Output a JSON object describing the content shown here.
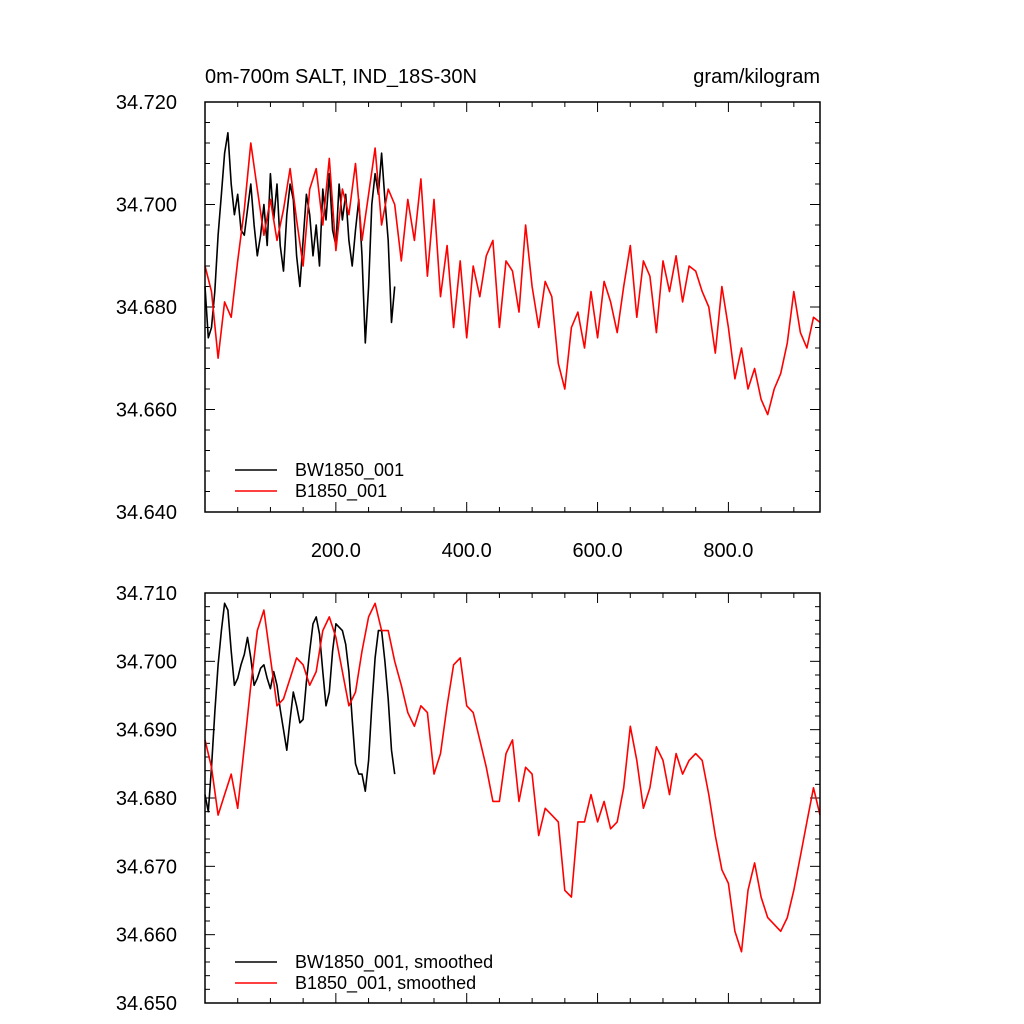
{
  "chart_data": [
    {
      "type": "line",
      "title_left": "0m-700m SALT, IND_18S-30N",
      "title_right": "gram/kilogram",
      "xlabel": "",
      "ylabel": "",
      "xlim": [
        0,
        940
      ],
      "ylim": [
        34.64,
        34.72
      ],
      "yticks": [
        "34.640",
        "34.660",
        "34.680",
        "34.700",
        "34.720"
      ],
      "xticks": [
        "200.0",
        "400.0",
        "600.0",
        "800.0"
      ],
      "legend_position": "bottom-left",
      "series": [
        {
          "name": "BW1850_001",
          "color": "#000000",
          "x": [
            0,
            5,
            10,
            15,
            20,
            25,
            30,
            35,
            40,
            45,
            50,
            55,
            60,
            65,
            70,
            75,
            80,
            85,
            90,
            95,
            100,
            105,
            110,
            115,
            120,
            125,
            130,
            135,
            140,
            145,
            150,
            155,
            160,
            165,
            170,
            175,
            180,
            185,
            190,
            195,
            200,
            205,
            210,
            215,
            220,
            225,
            230,
            235,
            240,
            245,
            250,
            255,
            260,
            265,
            270,
            275,
            280,
            285,
            290
          ],
          "values": [
            34.684,
            34.674,
            34.676,
            34.683,
            34.694,
            34.702,
            34.71,
            34.714,
            34.704,
            34.698,
            34.702,
            34.695,
            34.694,
            34.699,
            34.704,
            34.696,
            34.69,
            34.694,
            34.7,
            34.692,
            34.706,
            34.697,
            34.704,
            34.692,
            34.687,
            34.698,
            34.704,
            34.701,
            34.69,
            34.684,
            34.693,
            34.702,
            34.698,
            34.69,
            34.696,
            34.688,
            34.703,
            34.697,
            34.706,
            34.695,
            34.692,
            34.704,
            34.697,
            34.702,
            34.693,
            34.688,
            34.695,
            34.701,
            34.69,
            34.673,
            34.684,
            34.7,
            34.706,
            34.702,
            34.71,
            34.701,
            34.693,
            34.677,
            34.684
          ]
        },
        {
          "name": "B1850_001",
          "color": "#ff0000",
          "x": [
            0,
            10,
            20,
            30,
            40,
            50,
            60,
            70,
            80,
            90,
            100,
            110,
            120,
            130,
            140,
            150,
            160,
            170,
            180,
            190,
            200,
            210,
            220,
            230,
            240,
            250,
            260,
            270,
            280,
            290,
            300,
            310,
            320,
            330,
            340,
            350,
            360,
            370,
            380,
            390,
            400,
            410,
            420,
            430,
            440,
            450,
            460,
            470,
            480,
            490,
            500,
            510,
            520,
            530,
            540,
            550,
            560,
            570,
            580,
            590,
            600,
            610,
            620,
            630,
            640,
            650,
            660,
            670,
            680,
            690,
            700,
            710,
            720,
            730,
            740,
            750,
            760,
            770,
            780,
            790,
            800,
            810,
            820,
            830,
            840,
            850,
            860,
            870,
            880,
            890,
            900,
            910,
            920,
            930,
            940
          ],
          "values": [
            34.688,
            34.683,
            34.67,
            34.681,
            34.678,
            34.689,
            34.699,
            34.712,
            34.703,
            34.694,
            34.701,
            34.693,
            34.699,
            34.707,
            34.697,
            34.688,
            34.703,
            34.707,
            34.696,
            34.709,
            34.691,
            34.703,
            34.698,
            34.708,
            34.693,
            34.702,
            34.711,
            34.696,
            34.703,
            34.7,
            34.689,
            34.701,
            34.693,
            34.705,
            34.686,
            34.701,
            34.682,
            34.692,
            34.676,
            34.689,
            34.674,
            34.688,
            34.682,
            34.69,
            34.693,
            34.676,
            34.689,
            34.687,
            34.679,
            34.696,
            34.684,
            34.676,
            34.685,
            34.682,
            34.669,
            34.664,
            34.676,
            34.679,
            34.672,
            34.683,
            34.674,
            34.685,
            34.681,
            34.675,
            34.684,
            34.692,
            34.678,
            34.689,
            34.686,
            34.675,
            34.689,
            34.683,
            34.69,
            34.681,
            34.688,
            34.687,
            34.683,
            34.68,
            34.671,
            34.684,
            34.676,
            34.666,
            34.672,
            34.664,
            34.668,
            34.662,
            34.659,
            34.664,
            34.667,
            34.673,
            34.683,
            34.675,
            34.672,
            34.678,
            34.677
          ]
        }
      ]
    },
    {
      "type": "line",
      "title_left": "",
      "title_right": "",
      "xlabel": "",
      "ylabel": "",
      "xlim": [
        0,
        940
      ],
      "ylim": [
        34.65,
        34.71
      ],
      "yticks": [
        "34.650",
        "34.660",
        "34.670",
        "34.680",
        "34.690",
        "34.700",
        "34.710"
      ],
      "xticks": [],
      "legend_position": "bottom-left",
      "series": [
        {
          "name": "BW1850_001, smoothed",
          "color": "#000000",
          "x": [
            0,
            5,
            10,
            15,
            20,
            25,
            30,
            35,
            40,
            45,
            50,
            55,
            60,
            65,
            70,
            75,
            80,
            85,
            90,
            95,
            100,
            105,
            110,
            115,
            120,
            125,
            130,
            135,
            140,
            145,
            150,
            155,
            160,
            165,
            170,
            175,
            180,
            185,
            190,
            195,
            200,
            205,
            210,
            215,
            220,
            225,
            230,
            235,
            240,
            245,
            250,
            255,
            260,
            265,
            270,
            275,
            280,
            285,
            290
          ],
          "values": [
            34.6805,
            34.678,
            34.6845,
            34.6925,
            34.6995,
            34.7045,
            34.7085,
            34.7075,
            34.7015,
            34.6965,
            34.6975,
            34.6995,
            34.701,
            34.7035,
            34.7005,
            34.6965,
            34.6975,
            34.699,
            34.6995,
            34.6975,
            34.696,
            34.6985,
            34.6965,
            34.693,
            34.69,
            34.687,
            34.6915,
            34.6955,
            34.6935,
            34.691,
            34.6915,
            34.697,
            34.7015,
            34.7055,
            34.7065,
            34.704,
            34.6985,
            34.6935,
            34.6955,
            34.7015,
            34.7055,
            34.705,
            34.7045,
            34.7025,
            34.6985,
            34.6915,
            34.685,
            34.6835,
            34.6835,
            34.681,
            34.6855,
            34.6935,
            34.7005,
            34.7045,
            34.7045,
            34.7,
            34.6945,
            34.687,
            34.6835
          ]
        },
        {
          "name": "B1850_001, smoothed",
          "color": "#ff0000",
          "x": [
            0,
            10,
            20,
            30,
            40,
            50,
            60,
            70,
            80,
            90,
            100,
            110,
            120,
            130,
            140,
            150,
            160,
            170,
            180,
            190,
            200,
            210,
            220,
            230,
            240,
            250,
            260,
            270,
            280,
            290,
            300,
            310,
            320,
            330,
            340,
            350,
            360,
            370,
            380,
            390,
            400,
            410,
            420,
            430,
            440,
            450,
            460,
            470,
            480,
            490,
            500,
            510,
            520,
            530,
            540,
            550,
            560,
            570,
            580,
            590,
            600,
            610,
            620,
            630,
            640,
            650,
            660,
            670,
            680,
            690,
            700,
            710,
            720,
            730,
            740,
            750,
            760,
            770,
            780,
            790,
            800,
            810,
            820,
            830,
            840,
            850,
            860,
            870,
            880,
            890,
            900,
            910,
            920,
            930,
            940
          ],
          "values": [
            34.6885,
            34.6845,
            34.6775,
            34.6805,
            34.6835,
            34.6785,
            34.6875,
            34.6965,
            34.7045,
            34.7075,
            34.7005,
            34.6935,
            34.6945,
            34.6975,
            34.7005,
            34.6995,
            34.6965,
            34.6985,
            34.7045,
            34.7065,
            34.7035,
            34.6985,
            34.6935,
            34.6955,
            34.7015,
            34.7065,
            34.7085,
            34.7045,
            34.7045,
            34.7,
            34.6965,
            34.6925,
            34.6905,
            34.6935,
            34.6925,
            34.6835,
            34.6865,
            34.6935,
            34.6995,
            34.7005,
            34.6935,
            34.6925,
            34.6885,
            34.6845,
            34.6795,
            34.6795,
            34.6865,
            34.6885,
            34.6795,
            34.6845,
            34.6835,
            34.6745,
            34.6785,
            34.6775,
            34.6765,
            34.6665,
            34.6655,
            34.6765,
            34.6765,
            34.6805,
            34.6765,
            34.6795,
            34.6755,
            34.6765,
            34.6815,
            34.6905,
            34.6855,
            34.6785,
            34.6815,
            34.6875,
            34.6855,
            34.6805,
            34.6865,
            34.6835,
            34.6855,
            34.6865,
            34.6855,
            34.6805,
            34.6745,
            34.6695,
            34.6675,
            34.6605,
            34.6575,
            34.6665,
            34.6705,
            34.6655,
            34.6625,
            34.6615,
            34.6605,
            34.6625,
            34.6665,
            34.6715,
            34.6765,
            34.6815,
            34.6775
          ]
        }
      ]
    }
  ]
}
